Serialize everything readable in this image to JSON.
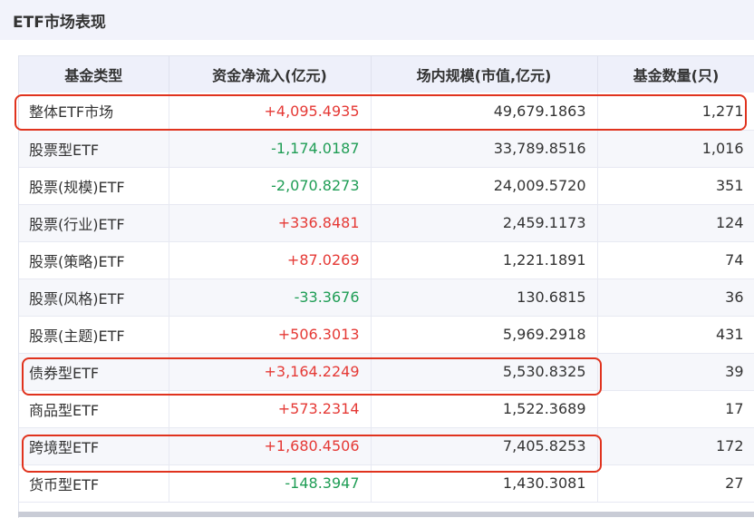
{
  "header": {
    "title": "ETF市场表现"
  },
  "table": {
    "columns": [
      "基金类型",
      "资金净流入(亿元)",
      "场内规模(市值,亿元)",
      "基金数量(只)"
    ],
    "rows": [
      {
        "name": "整体ETF市场",
        "flow": "+4,095.4935",
        "flow_sign": "pos",
        "scale": "49,679.1863",
        "count": "1,271",
        "highlighted": true
      },
      {
        "name": "股票型ETF",
        "flow": "-1,174.0187",
        "flow_sign": "neg",
        "scale": "33,789.8516",
        "count": "1,016",
        "highlighted": false
      },
      {
        "name": "股票(规模)ETF",
        "flow": "-2,070.8273",
        "flow_sign": "neg",
        "scale": "24,009.5720",
        "count": "351",
        "highlighted": false
      },
      {
        "name": "股票(行业)ETF",
        "flow": "+336.8481",
        "flow_sign": "pos",
        "scale": "2,459.1173",
        "count": "124",
        "highlighted": false
      },
      {
        "name": "股票(策略)ETF",
        "flow": "+87.0269",
        "flow_sign": "pos",
        "scale": "1,221.1891",
        "count": "74",
        "highlighted": false
      },
      {
        "name": "股票(风格)ETF",
        "flow": "-33.3676",
        "flow_sign": "neg",
        "scale": "130.6815",
        "count": "36",
        "highlighted": false
      },
      {
        "name": "股票(主题)ETF",
        "flow": "+506.3013",
        "flow_sign": "pos",
        "scale": "5,969.2918",
        "count": "431",
        "highlighted": false
      },
      {
        "name": "债券型ETF",
        "flow": "+3,164.2249",
        "flow_sign": "pos",
        "scale": "5,530.8325",
        "count": "39",
        "highlighted": true
      },
      {
        "name": "商品型ETF",
        "flow": "+573.2314",
        "flow_sign": "pos",
        "scale": "1,522.3689",
        "count": "17",
        "highlighted": false
      },
      {
        "name": "跨境型ETF",
        "flow": "+1,680.4506",
        "flow_sign": "pos",
        "scale": "7,405.8253",
        "count": "172",
        "highlighted": true
      },
      {
        "name": "货币型ETF",
        "flow": "-148.3947",
        "flow_sign": "neg",
        "scale": "1,430.3081",
        "count": "27",
        "highlighted": false
      }
    ]
  },
  "colors": {
    "positive": "#e53935",
    "negative": "#1f9d55",
    "highlight_border": "#e0331e",
    "header_bg": "#eef0fa"
  }
}
